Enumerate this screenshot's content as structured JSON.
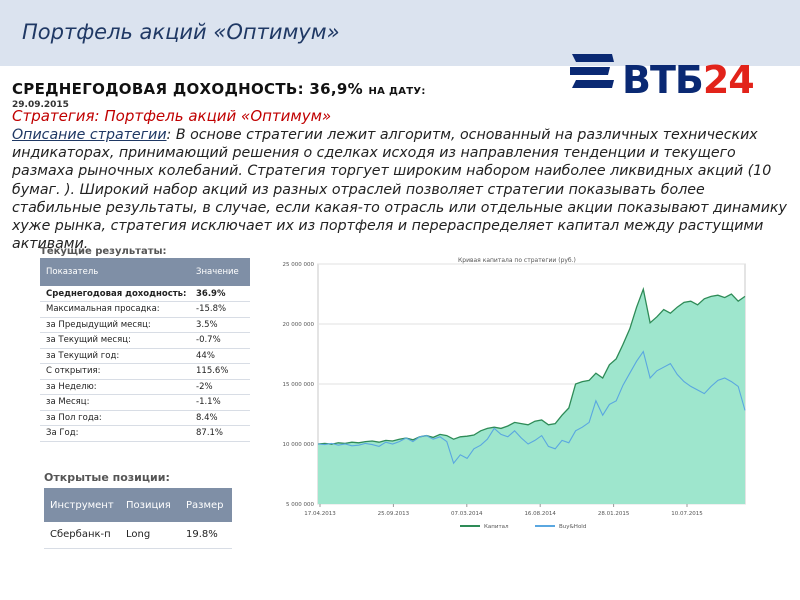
{
  "slide": {
    "title": "Портфель акций «Оптимум»"
  },
  "logo": {
    "text_letters": "ВТБ",
    "text_number": "24"
  },
  "yield": {
    "label": "СРЕДНЕГОДОВАЯ ДОХОДНОСТЬ: 36,9%",
    "date_prefix": "НА ДАТУ:",
    "date": "29.09.2015"
  },
  "strategy": {
    "label": "Стратегия: Портфель акций «Оптимум»"
  },
  "description": {
    "label": "Описание стратегии",
    "text": ": В основе стратегии лежит алгоритм, основанный на различных технических индикаторах, принимающий решения о сделках исходя из направления тенденции и текущего размаха рыночных колебаний. Стратегия торгует широким набором наиболее ликвидных акций (10 бумаг. ). Широкий набор акций из разных отраслей позволяет стратегии показывать более стабильные результаты, в случае, если какая-то отрасль или отдельные акции показывают динамику хуже рынка, стратегия исключает их из портфеля и перераспределяет капитал между растущими активами."
  },
  "results": {
    "title": "Текущие результаты:",
    "col_indicator": "Показатель",
    "col_value": "Значение",
    "rows": [
      {
        "name": "Среднегодовая доходность:",
        "value": "36.9%"
      },
      {
        "name": "Максимальная просадка:",
        "value": "-15.8%"
      },
      {
        "name": "за Предыдущий месяц:",
        "value": "3.5%"
      },
      {
        "name": "за Текущий месяц:",
        "value": "-0.7%"
      },
      {
        "name": "за Текущий год:",
        "value": "44%"
      },
      {
        "name": "С открытия:",
        "value": "115.6%"
      },
      {
        "name": "за Неделю:",
        "value": "-2%"
      },
      {
        "name": "за Месяц:",
        "value": "-1.1%"
      },
      {
        "name": "за Пол года:",
        "value": "8.4%"
      },
      {
        "name": "За Год:",
        "value": "87.1%"
      }
    ]
  },
  "positions": {
    "title": "Открытые позиции:",
    "col_instrument": "Инструмент",
    "col_position": "Позиция",
    "col_size": "Размер",
    "rows": [
      {
        "instrument": "Сбербанк-п",
        "position": "Long",
        "size": "19.8%"
      }
    ]
  },
  "chart_data": {
    "type": "area",
    "title": "Кривая капитала по стратегии (руб.)",
    "y_ticks": [
      "25 000 000",
      "20 000 000",
      "15 000 000",
      "10 000 000",
      "5 000 000"
    ],
    "y_tick_values": [
      25000000,
      20000000,
      15000000,
      10000000,
      5000000
    ],
    "x_ticks": [
      "17.04.2013",
      "25.09.2013",
      "07.03.2014",
      "16.08.2014",
      "28.01.2015",
      "10.07.2015"
    ],
    "ylim": [
      5000000,
      25000000
    ],
    "legend_position": "bottom",
    "series": [
      {
        "name": "Капитал",
        "color": "#2e8b57",
        "fill": "#9ee6cd",
        "values": [
          10000000,
          10050000,
          9980000,
          10100000,
          10050000,
          10150000,
          10100000,
          10200000,
          10250000,
          10150000,
          10300000,
          10250000,
          10400000,
          10500000,
          10350000,
          10600000,
          10700000,
          10550000,
          10800000,
          10700000,
          10400000,
          10600000,
          10650000,
          10750000,
          11100000,
          11300000,
          11400000,
          11300000,
          11500000,
          11800000,
          11700000,
          11600000,
          11900000,
          12000000,
          11600000,
          11700000,
          12400000,
          13000000,
          15000000,
          15200000,
          15300000,
          15900000,
          15500000,
          16600000,
          17100000,
          18300000,
          19600000,
          21400000,
          22900000,
          20100000,
          20600000,
          21200000,
          20900000,
          21400000,
          21800000,
          21900000,
          21600000,
          22100000,
          22300000,
          22400000,
          22200000,
          22500000,
          21900000,
          22300000
        ]
      },
      {
        "name": "Buy&Hold",
        "color": "#5aa7e0",
        "values": [
          10000000,
          9950000,
          10050000,
          9900000,
          10000000,
          9850000,
          9900000,
          10050000,
          9950000,
          9800000,
          10150000,
          10000000,
          10200000,
          10500000,
          10200000,
          10600000,
          10700000,
          10400000,
          10600000,
          10200000,
          8400000,
          9100000,
          8800000,
          9600000,
          9900000,
          10400000,
          11300000,
          10800000,
          10600000,
          11100000,
          10500000,
          10000000,
          10300000,
          10700000,
          9800000,
          9600000,
          10300000,
          10100000,
          11100000,
          11400000,
          11800000,
          13600000,
          12400000,
          13300000,
          13600000,
          14900000,
          15900000,
          16900000,
          17700000,
          15500000,
          16100000,
          16400000,
          16700000,
          15800000,
          15200000,
          14800000,
          14500000,
          14200000,
          14800000,
          15300000,
          15500000,
          15200000,
          14800000,
          12800000
        ]
      }
    ]
  }
}
